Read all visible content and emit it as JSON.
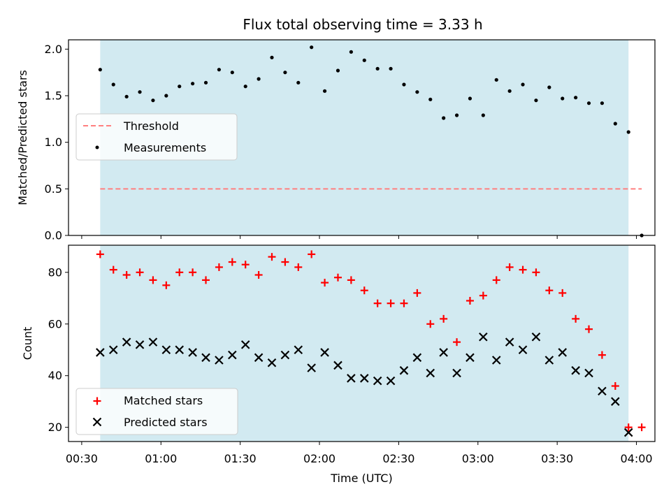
{
  "chart_data": [
    {
      "type": "scatter",
      "title": "Flux total observing time = 3.33 h",
      "ylabel": "Matched/Predicted stars",
      "xlabel": "",
      "x_unit": "time (UTC, HH:MM)",
      "xlim": [
        "00:25",
        "04:07"
      ],
      "ylim": [
        0.0,
        2.1
      ],
      "yticks": [
        "0.0",
        "0.5",
        "1.0",
        "1.5",
        "2.0"
      ],
      "grid": false,
      "legend": "center-left",
      "shaded_interval": [
        "00:37",
        "03:57"
      ],
      "shade_color": "#add8e6",
      "series": [
        {
          "name": "Threshold",
          "style": "dashed-line",
          "color": "#ff7f7f",
          "x": [
            "00:37",
            "04:02"
          ],
          "y": [
            0.5,
            0.5
          ]
        },
        {
          "name": "Measurements",
          "style": "dot",
          "color": "#000000",
          "x": [
            "00:37",
            "00:42",
            "00:47",
            "00:52",
            "00:57",
            "01:02",
            "01:07",
            "01:12",
            "01:17",
            "01:22",
            "01:27",
            "01:32",
            "01:37",
            "01:42",
            "01:47",
            "01:52",
            "01:57",
            "02:02",
            "02:07",
            "02:12",
            "02:17",
            "02:22",
            "02:27",
            "02:32",
            "02:37",
            "02:42",
            "02:47",
            "02:52",
            "02:57",
            "03:02",
            "03:07",
            "03:12",
            "03:17",
            "03:22",
            "03:27",
            "03:32",
            "03:37",
            "03:42",
            "03:47",
            "03:52",
            "03:57",
            "04:02"
          ],
          "y": [
            1.78,
            1.62,
            1.49,
            1.54,
            1.45,
            1.5,
            1.6,
            1.63,
            1.64,
            1.78,
            1.75,
            1.6,
            1.68,
            1.91,
            1.75,
            1.64,
            2.02,
            1.55,
            1.77,
            1.97,
            1.88,
            1.79,
            1.79,
            1.62,
            1.54,
            1.46,
            1.26,
            1.29,
            1.47,
            1.29,
            1.67,
            1.55,
            1.62,
            1.45,
            1.59,
            1.47,
            1.48,
            1.42,
            1.42,
            1.2,
            1.11,
            0.0
          ]
        }
      ]
    },
    {
      "type": "scatter",
      "title": "",
      "ylabel": "Count",
      "xlabel": "Time (UTC)",
      "x_unit": "time (UTC, HH:MM)",
      "xlim": [
        "00:25",
        "04:07"
      ],
      "ylim": [
        14.5,
        90.5
      ],
      "yticks": [
        "20",
        "40",
        "60",
        "80"
      ],
      "xticks": [
        "00:30",
        "01:00",
        "01:30",
        "02:00",
        "02:30",
        "03:00",
        "03:30",
        "04:00"
      ],
      "grid": false,
      "legend": "lower-left",
      "shaded_interval": [
        "00:37",
        "03:57"
      ],
      "shade_color": "#add8e6",
      "series": [
        {
          "name": "Matched stars",
          "marker": "+",
          "color": "#ff0000",
          "x": [
            "00:37",
            "00:42",
            "00:47",
            "00:52",
            "00:57",
            "01:02",
            "01:07",
            "01:12",
            "01:17",
            "01:22",
            "01:27",
            "01:32",
            "01:37",
            "01:42",
            "01:47",
            "01:52",
            "01:57",
            "02:02",
            "02:07",
            "02:12",
            "02:17",
            "02:22",
            "02:27",
            "02:32",
            "02:37",
            "02:42",
            "02:47",
            "02:52",
            "02:57",
            "03:02",
            "03:07",
            "03:12",
            "03:17",
            "03:22",
            "03:27",
            "03:32",
            "03:37",
            "03:42",
            "03:47",
            "03:52",
            "03:57",
            "04:02"
          ],
          "y": [
            87,
            81,
            79,
            80,
            77,
            75,
            80,
            80,
            77,
            82,
            84,
            83,
            79,
            86,
            84,
            82,
            87,
            76,
            78,
            77,
            73,
            68,
            68,
            68,
            72,
            60,
            62,
            53,
            69,
            71,
            77,
            82,
            81,
            80,
            73,
            72,
            62,
            58,
            48,
            36,
            20,
            20
          ]
        },
        {
          "name": "Predicted stars",
          "marker": "x",
          "color": "#000000",
          "x": [
            "00:37",
            "00:42",
            "00:47",
            "00:52",
            "00:57",
            "01:02",
            "01:07",
            "01:12",
            "01:17",
            "01:22",
            "01:27",
            "01:32",
            "01:37",
            "01:42",
            "01:47",
            "01:52",
            "01:57",
            "02:02",
            "02:07",
            "02:12",
            "02:17",
            "02:22",
            "02:27",
            "02:32",
            "02:37",
            "02:42",
            "02:47",
            "02:52",
            "02:57",
            "03:02",
            "03:07",
            "03:12",
            "03:17",
            "03:22",
            "03:27",
            "03:32",
            "03:37",
            "03:42",
            "03:47",
            "03:52",
            "03:57"
          ],
          "y": [
            49,
            50,
            53,
            52,
            53,
            50,
            50,
            49,
            47,
            46,
            48,
            52,
            47,
            45,
            48,
            50,
            43,
            49,
            44,
            39,
            39,
            38,
            38,
            42,
            47,
            41,
            49,
            41,
            47,
            55,
            46,
            53,
            50,
            55,
            46,
            49,
            42,
            41,
            34,
            30,
            18
          ]
        }
      ]
    }
  ]
}
